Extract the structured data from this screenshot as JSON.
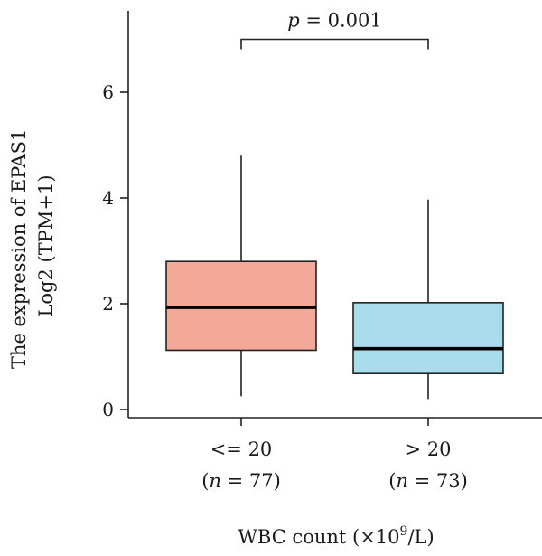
{
  "chart_data": {
    "type": "box",
    "xlabel": "WBC count (×10",
    "xlabel_sup": "9",
    "xlabel_tail": "/L)",
    "ylabel_line1": "The expression of EPAS1",
    "ylabel_line2": "Log2 (TPM+1)",
    "ylim": [
      0,
      7.4
    ],
    "yticks": [
      "0",
      "2",
      "4",
      "6"
    ],
    "ytick_values": [
      0,
      2,
      4,
      6
    ],
    "groups": [
      {
        "label": "<= 20",
        "n_label": "(n = 77)",
        "n_prefix": "(",
        "n_var": "n",
        "n_suffix": " = 77)",
        "color": "#F4A89A",
        "whisker_low": 0.25,
        "q1": 1.12,
        "median": 1.93,
        "q3": 2.8,
        "whisker_high": 4.8
      },
      {
        "label": "> 20",
        "n_label": "(n = 73)",
        "n_prefix": "(",
        "n_var": "n",
        "n_suffix": " = 73)",
        "color": "#A8DCEA",
        "whisker_low": 0.2,
        "q1": 0.68,
        "median": 1.15,
        "q3": 2.02,
        "whisker_high": 3.97
      }
    ],
    "annotation": {
      "p_var": "p",
      "p_rest": " = 0.001",
      "bracket_y": 7.0
    }
  }
}
